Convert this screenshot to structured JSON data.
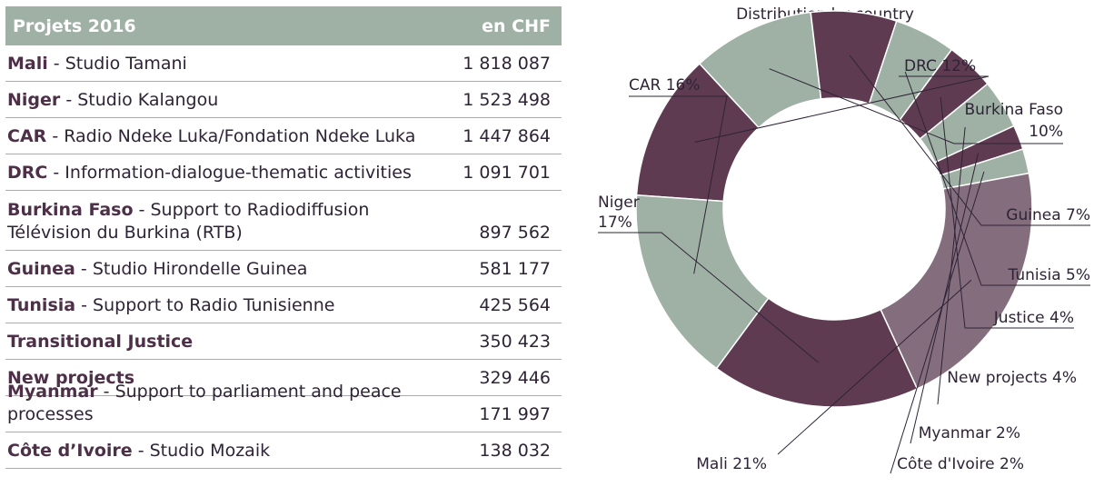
{
  "table": {
    "header": {
      "title": "Projets 2016",
      "unit": "en CHF"
    },
    "rows": [
      {
        "country": "Mali",
        "desc": "Studio Tamani",
        "value": "1 818 087"
      },
      {
        "country": "Niger",
        "desc": "Studio Kalangou",
        "value": "1 523 498"
      },
      {
        "country": "CAR",
        "desc": "Radio Ndeke Luka/Fondation Ndeke Luka",
        "value": "1 447 864"
      },
      {
        "country": "DRC",
        "desc": "Information-dialogue-thematic activities",
        "value": "1 091 701"
      },
      {
        "country": "Burkina Faso",
        "desc": "Support to Radiodiffusion",
        "desc2": "Télévision du Burkina (RTB)",
        "value": "897 562"
      },
      {
        "country": "Guinea",
        "desc": "Studio Hirondelle Guinea",
        "value": "581 177"
      },
      {
        "country": "Tunisia",
        "desc": "Support to Radio Tunisienne",
        "value": "425 564"
      },
      {
        "country": "Transitional Justice",
        "desc": "",
        "value": "350 423"
      },
      {
        "country": "New projects",
        "desc": "",
        "value": "329 446"
      },
      {
        "country": "Myanmar",
        "desc": "Support to parliament and peace processes",
        "value": "171 997"
      },
      {
        "country": "Côte d’Ivoire",
        "desc": "Studio Mozaik",
        "value": "138 032"
      }
    ]
  },
  "chart_data": {
    "type": "pie",
    "variant": "donut",
    "title": "Distribution by country",
    "slices": [
      {
        "name": "DRC",
        "label": "DRC 12%",
        "percent": 12,
        "color": "#5e3b51"
      },
      {
        "name": "Burkina Faso",
        "label_lines": [
          "Burkina Faso",
          "10%"
        ],
        "percent": 10,
        "color": "#9fb1a5"
      },
      {
        "name": "Guinea",
        "label": "Guinea 7%",
        "percent": 7,
        "color": "#5e3b51"
      },
      {
        "name": "Tunisia",
        "label": "Tunisia 5%",
        "percent": 5,
        "color": "#9fb1a5"
      },
      {
        "name": "Justice",
        "label": "Justice 4%",
        "percent": 4,
        "color": "#5e3b51"
      },
      {
        "name": "New projects",
        "label": "New projects 4%",
        "percent": 4,
        "color": "#9fb1a5"
      },
      {
        "name": "Myanmar",
        "label": "Myanmar 2%",
        "percent": 2,
        "color": "#5e3b51"
      },
      {
        "name": "Côte d'Ivoire",
        "label": "Côte d'Ivoire 2%",
        "percent": 2,
        "color": "#9fb1a5"
      },
      {
        "name": "Mali",
        "label": "Mali 21%",
        "percent": 21,
        "color": "#846e7e"
      },
      {
        "name": "Niger",
        "label_lines": [
          "Niger",
          "17%"
        ],
        "percent": 17,
        "color": "#5e3b51"
      },
      {
        "name": "CAR",
        "label": "CAR 16%",
        "percent": 16,
        "color": "#9fb1a5"
      }
    ]
  }
}
